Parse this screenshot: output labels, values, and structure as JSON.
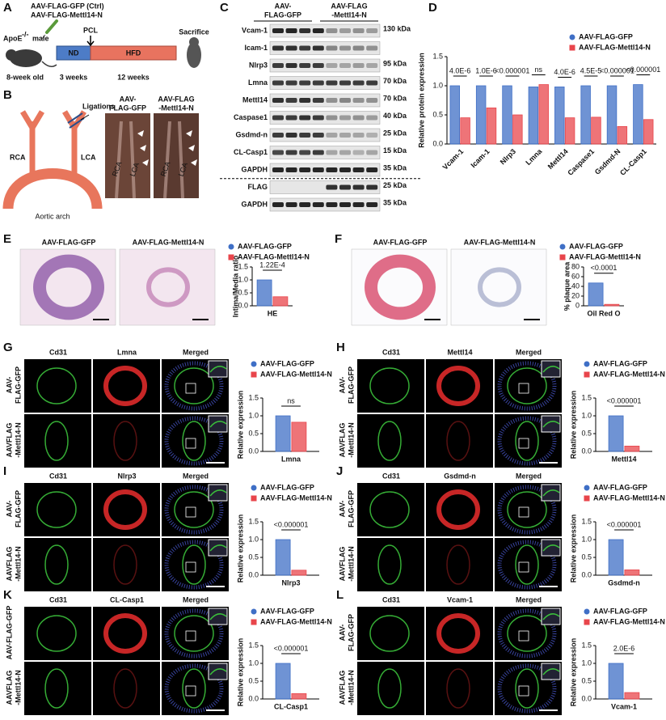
{
  "panels": {
    "A": {
      "label": "A",
      "vectors": [
        "AAV-FLAG-GFP (Ctrl)",
        "AAV-FLAG-Mettl14-N"
      ],
      "mouse": "ApoE",
      "mouse_genotype": "-/-",
      "mouse_sex": "male",
      "age": "8-week old",
      "surgery": "PCL",
      "endpoint": "Sacrifice",
      "diets": [
        "ND",
        "HFD"
      ],
      "durations": [
        "3 weeks",
        "12 weeks"
      ]
    },
    "B": {
      "label": "B",
      "ligations": "Ligations",
      "vessels": [
        "RCA",
        "LCA"
      ],
      "arch": "Aortic arch",
      "groups": [
        [
          "AAV-",
          "FLAG-GFP"
        ],
        [
          "AAV-FLAG",
          "-Mettl14-N"
        ]
      ],
      "photo_vessels": [
        "RCA",
        "LCA"
      ]
    },
    "C": {
      "label": "C",
      "groups": [
        [
          "AAV-",
          "FLAG-GFP"
        ],
        [
          "AAV-FLAG",
          "-Mettl14-N"
        ]
      ],
      "blots": [
        {
          "name": "Vcam-1",
          "marker": "130 kDa"
        },
        {
          "name": "Icam-1"
        },
        {
          "name": "Nlrp3",
          "marker": "95 kDa"
        },
        {
          "name": "Lmna",
          "marker": "70 kDa"
        },
        {
          "name": "Mettl14",
          "marker": "70 kDa"
        },
        {
          "name": "Caspase1",
          "marker": "40 kDa"
        },
        {
          "name": "Gsdmd-n",
          "marker": "25 kDa"
        },
        {
          "name": "CL-Casp1",
          "marker": "15 kDa"
        },
        {
          "name": "GAPDH",
          "marker": "35 kDa"
        },
        {
          "name": "FLAG",
          "marker": "25 kDa"
        },
        {
          "name": "GAPDH",
          "marker": "35 kDa"
        }
      ]
    },
    "D": {
      "label": "D"
    },
    "E": {
      "label": "E",
      "images": [
        "AAV-FLAG-GFP",
        "AAV-FLAG-Mettl14-N"
      ]
    },
    "F": {
      "label": "F",
      "images": [
        "AAV-FLAG-GFP",
        "AAV-FLAG-Mettl14-N"
      ]
    },
    "G": {
      "label": "G",
      "stains": [
        "Cd31",
        "Lmna",
        "Merged"
      ],
      "rows": [
        [
          "AAV-",
          "FLAG-GFP"
        ],
        [
          "AAVFLAG",
          "-Mettl14-N"
        ]
      ]
    },
    "H": {
      "label": "H",
      "stains": [
        "Cd31",
        "Mettl14",
        "Merged"
      ],
      "rows": [
        [
          "AAV-",
          "FLAG-GFP"
        ],
        [
          "AAVFLAG",
          "-Mettl14-N"
        ]
      ]
    },
    "I": {
      "label": "I",
      "stains": [
        "Cd31",
        "Nlrp3",
        "Merged"
      ],
      "rows": [
        [
          "AAV-",
          "FLAG-GFP"
        ],
        [
          "AAVFLAG",
          "-Mettl14-N"
        ]
      ]
    },
    "J": {
      "label": "J",
      "stains": [
        "Cd31",
        "Gsdmd-n",
        "Merged"
      ],
      "rows": [
        [
          "AAV-",
          "FLAG-GFP"
        ],
        [
          "AAVFLAG",
          "-Mettl14-N"
        ]
      ]
    },
    "K": {
      "label": "K",
      "stains": [
        "Cd31",
        "CL-Casp1",
        "Merged"
      ],
      "rows": [
        [
          "AAV-FLAG-GFP"
        ],
        [
          "AAVFLAG",
          "-Mettl14-N"
        ]
      ]
    },
    "L": {
      "label": "L",
      "stains": [
        "Cd31",
        "Vcam-1",
        "Merged"
      ],
      "rows": [
        [
          "AAV-",
          "FLAG-GFP"
        ],
        [
          "AAVFLAG",
          "-Mettl14-N"
        ]
      ]
    }
  },
  "chart_data": [
    {
      "type": "bar",
      "y_label": "Relative protein expression",
      "categories": [
        "Vcam-1",
        "Icam-1",
        "Nlrp3",
        "Lmna",
        "Mettl14",
        "Caspase1",
        "Gsdmd-N",
        "CL-Casp1"
      ],
      "series": [
        {
          "name": "AAV-FLAG-GFP",
          "color": "#3f6fc6",
          "values": [
            1.0,
            1.0,
            1.0,
            0.98,
            0.98,
            1.0,
            1.0,
            1.02
          ]
        },
        {
          "name": "AAV-FLAG-Mettl14-N",
          "color": "#e8454b",
          "values": [
            0.45,
            0.62,
            0.5,
            1.02,
            0.45,
            0.46,
            0.3,
            0.42
          ]
        }
      ],
      "annotations": [
        "4.0E-6",
        "1.0E-6",
        "<0.000001",
        "ns",
        "4.0E-6",
        "4.5E-5",
        "<0.000001",
        "<0.000001"
      ],
      "ylim": [
        0,
        1.5
      ],
      "yticks": [
        {
          "value": 0,
          "label": "0.0"
        },
        0.5,
        {
          "value": 1,
          "label": "1.0"
        },
        1.5
      ]
    },
    {
      "type": "bar",
      "y_label": "Intima/Media ratio",
      "categories": [
        "HE"
      ],
      "series": [
        {
          "name": "AAV-FLAG-GFP",
          "color": "#3f6fc6",
          "values": [
            1.0
          ]
        },
        {
          "name": "AAV-FLAG-Mettl14-N",
          "color": "#e8454b",
          "values": [
            0.35
          ]
        }
      ],
      "annotations": [
        "1.22E-4"
      ],
      "ylim": [
        0,
        1.5
      ],
      "yticks": [
        {
          "value": 0,
          "label": "0.0"
        },
        0.5,
        {
          "value": 1,
          "label": "1.0"
        },
        1.5
      ]
    },
    {
      "type": "bar",
      "y_label": "% plaque area",
      "categories": [
        "Oil Red O"
      ],
      "series": [
        {
          "name": "AAV-FLAG-GFP",
          "color": "#3f6fc6",
          "values": [
            47
          ]
        },
        {
          "name": "AAV-FLAG-Mettl14-N",
          "color": "#e8454b",
          "values": [
            3
          ]
        }
      ],
      "annotations": [
        "<0.0001"
      ],
      "ylim": [
        0,
        80
      ],
      "yticks": [
        0,
        20,
        40,
        60,
        80
      ]
    },
    {
      "type": "bar",
      "y_label": "Relative expression",
      "categories": [
        "Lmna"
      ],
      "series": [
        {
          "name": "AAV-FLAG-GFP",
          "color": "#3f6fc6",
          "values": [
            1.0
          ]
        },
        {
          "name": "AAV-FLAG-Mettl14-N",
          "color": "#e8454b",
          "values": [
            0.82
          ]
        }
      ],
      "annotations": [
        "ns"
      ],
      "ylim": [
        0,
        1.5
      ],
      "yticks": [
        {
          "value": 0,
          "label": "0.0"
        },
        0.5,
        {
          "value": 1,
          "label": "1.0"
        },
        1.5
      ]
    },
    {
      "type": "bar",
      "y_label": "Relative expression",
      "categories": [
        "Mettl14"
      ],
      "series": [
        {
          "name": "AAV-FLAG-GFP",
          "color": "#3f6fc6",
          "values": [
            1.0
          ]
        },
        {
          "name": "AAV-FLAG-Mettl14-N",
          "color": "#e8454b",
          "values": [
            0.15
          ]
        }
      ],
      "annotations": [
        "<0.000001"
      ],
      "ylim": [
        0,
        1.5
      ],
      "yticks": [
        {
          "value": 0,
          "label": "0.0"
        },
        0.5,
        {
          "value": 1,
          "label": "1.0"
        },
        1.5
      ]
    },
    {
      "type": "bar",
      "y_label": "Relative expression",
      "categories": [
        "Nlrp3"
      ],
      "series": [
        {
          "name": "AAV-FLAG-GFP",
          "color": "#3f6fc6",
          "values": [
            1.0
          ]
        },
        {
          "name": "AAV-FLAG-Mettl14-N",
          "color": "#e8454b",
          "values": [
            0.14
          ]
        }
      ],
      "annotations": [
        "<0.000001"
      ],
      "ylim": [
        0,
        1.5
      ],
      "yticks": [
        {
          "value": 0,
          "label": "0.0"
        },
        0.5,
        {
          "value": 1,
          "label": "1.0"
        },
        1.5
      ]
    },
    {
      "type": "bar",
      "y_label": "Relative expression",
      "categories": [
        "Gsdmd-n"
      ],
      "series": [
        {
          "name": "AAV-FLAG-GFP",
          "color": "#3f6fc6",
          "values": [
            1.0
          ]
        },
        {
          "name": "AAV-FLAG-Mettl14-N",
          "color": "#e8454b",
          "values": [
            0.15
          ]
        }
      ],
      "annotations": [
        "<0.000001"
      ],
      "ylim": [
        0,
        1.5
      ],
      "yticks": [
        {
          "value": 0,
          "label": "0.0"
        },
        0.5,
        {
          "value": 1,
          "label": "1.0"
        },
        1.5
      ]
    },
    {
      "type": "bar",
      "y_label": "Relative expression",
      "categories": [
        "CL-Casp1"
      ],
      "series": [
        {
          "name": "AAV-FLAG-GFP",
          "color": "#3f6fc6",
          "values": [
            1.0
          ]
        },
        {
          "name": "AAV-FLAG-Mettl14-N",
          "color": "#e8454b",
          "values": [
            0.15
          ]
        }
      ],
      "annotations": [
        "<0.000001"
      ],
      "ylim": [
        0,
        1.5
      ],
      "yticks": [
        {
          "value": 0,
          "label": "0.0"
        },
        0.5,
        {
          "value": 1,
          "label": "1.0"
        },
        1.5
      ]
    },
    {
      "type": "bar",
      "y_label": "Relative expression",
      "categories": [
        "Vcam-1"
      ],
      "series": [
        {
          "name": "AAV-FLAG-GFP",
          "color": "#3f6fc6",
          "values": [
            1.0
          ]
        },
        {
          "name": "AAV-FLAG-Mettl14-N",
          "color": "#e8454b",
          "values": [
            0.18
          ]
        }
      ],
      "annotations": [
        "2.0E-6"
      ],
      "ylim": [
        0,
        1.5
      ],
      "yticks": [
        {
          "value": 0,
          "label": "0.0"
        },
        0.5,
        {
          "value": 1,
          "label": "1.0"
        },
        1.5
      ]
    }
  ]
}
